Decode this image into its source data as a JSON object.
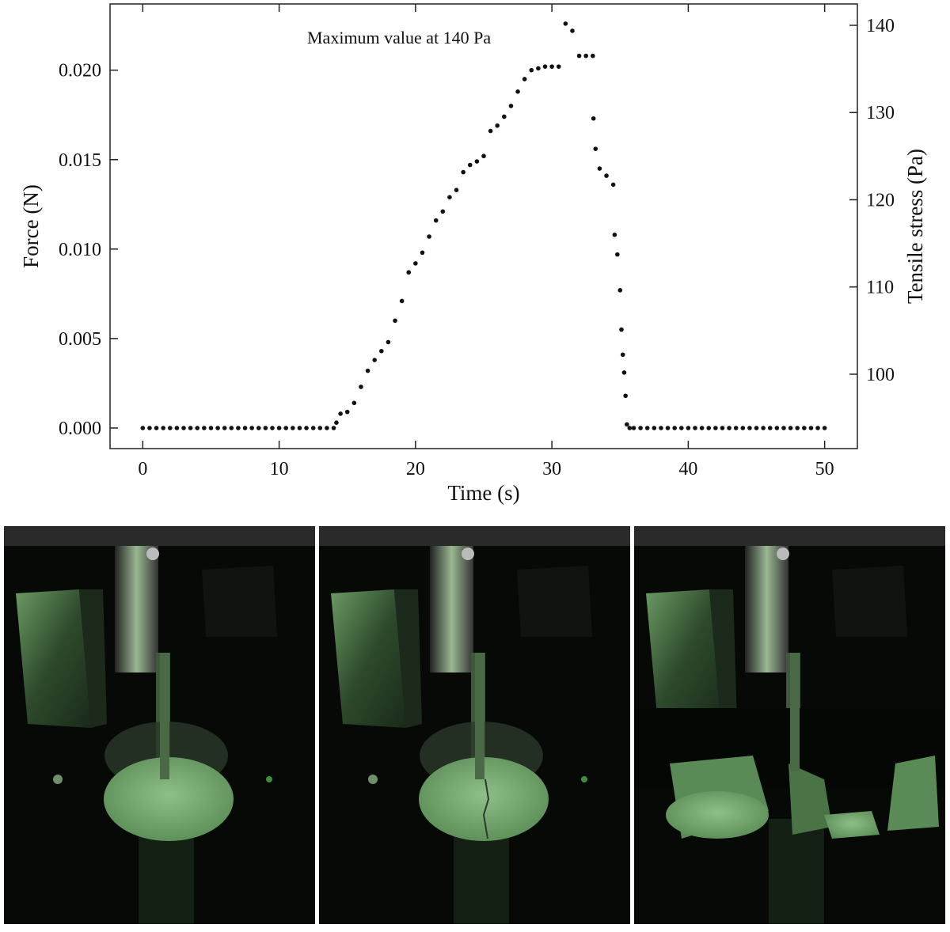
{
  "chart_data": {
    "type": "scatter",
    "annotation": "Maximum value at 140 Pa",
    "xlabel": "Time (s)",
    "ylabel": "Force (N)",
    "y2label": "Tensile stress (Pa)",
    "xlim": [
      -2.4,
      52.4
    ],
    "xticks": [
      0,
      10,
      20,
      30,
      40,
      50
    ],
    "ylim": [
      -0.00115,
      0.0237
    ],
    "yticks": [
      {
        "value": 0,
        "label": "0.000"
      },
      0.005,
      {
        "value": 0.01,
        "label": "0.010"
      },
      0.015,
      {
        "value": 0.02,
        "label": "0.020"
      }
    ],
    "y2lim": [
      91.47,
      142.45
    ],
    "y2ticks": [
      100,
      110,
      120,
      130,
      140
    ],
    "series": [
      {
        "color": "#111111",
        "x": [
          0,
          0.5,
          1,
          1.5,
          2,
          2.5,
          3,
          3.5,
          4,
          4.5,
          5,
          5.5,
          6,
          6.5,
          7,
          7.5,
          8,
          8.5,
          9,
          9.5,
          10,
          10.5,
          11,
          11.5,
          12,
          12.5,
          13,
          13.5,
          14,
          14.2,
          14.5,
          15,
          15.5,
          16,
          16.5,
          17,
          17.5,
          18,
          18.5,
          19,
          19.5,
          20,
          20.5,
          21,
          21.5,
          22,
          22.5,
          23,
          23.5,
          24,
          24.5,
          25,
          25.5,
          26,
          26.5,
          27,
          27.5,
          28,
          28.5,
          29,
          29.5,
          30,
          30.5,
          31,
          31.5,
          32,
          32.5,
          33,
          33.05,
          33.2,
          33.5,
          34,
          34.5,
          34.6,
          34.8,
          35,
          35.1,
          35.2,
          35.3,
          35.4,
          35.5,
          35.7,
          36,
          36.5,
          37,
          37.5,
          38,
          38.5,
          39,
          39.5,
          40,
          40.5,
          41,
          41.5,
          42,
          42.5,
          43,
          43.5,
          44,
          44.5,
          45,
          45.5,
          46,
          46.5,
          47,
          47.5,
          48,
          48.5,
          49,
          49.5,
          50
        ],
        "values": [
          0,
          0,
          0,
          0,
          0,
          0,
          0,
          0,
          0,
          0,
          0,
          0,
          0,
          0,
          0,
          0,
          0,
          0,
          0,
          0,
          0,
          0,
          0,
          0,
          0,
          0,
          0,
          0,
          0,
          0.0003,
          0.0008,
          0.0009,
          0.0014,
          0.0023,
          0.0032,
          0.0038,
          0.0043,
          0.0048,
          0.006,
          0.0071,
          0.0087,
          0.0092,
          0.0098,
          0.0107,
          0.0116,
          0.0121,
          0.0129,
          0.0133,
          0.0143,
          0.0147,
          0.0149,
          0.0152,
          0.0166,
          0.0169,
          0.0174,
          0.018,
          0.0188,
          0.0195,
          0.02,
          0.0201,
          0.0202,
          0.0202,
          0.0202,
          0.0226,
          0.0222,
          0.0208,
          0.0208,
          0.0208,
          0.0173,
          0.0156,
          0.0145,
          0.0141,
          0.0136,
          0.0108,
          0.0097,
          0.0077,
          0.0055,
          0.0041,
          0.0031,
          0.0018,
          0.0002,
          0,
          0,
          0,
          0,
          0,
          0,
          0,
          0,
          0,
          0,
          0,
          0,
          0,
          0,
          0,
          0,
          0,
          0,
          0,
          0,
          0,
          0,
          0,
          0,
          0,
          0,
          0,
          0,
          0,
          0
        ]
      }
    ]
  }
}
